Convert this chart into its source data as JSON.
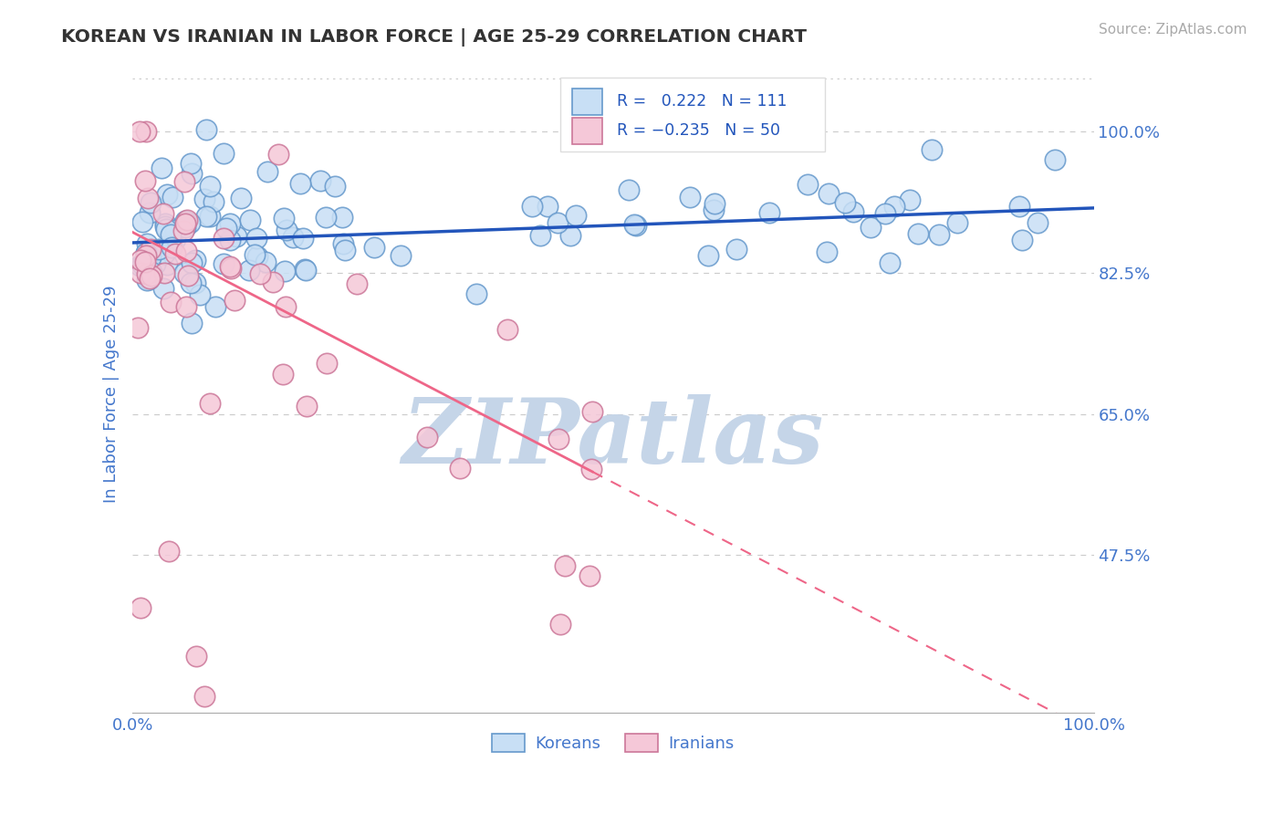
{
  "title": "KOREAN VS IRANIAN IN LABOR FORCE | AGE 25-29 CORRELATION CHART",
  "source_text": "Source: ZipAtlas.com",
  "ylabel": "In Labor Force | Age 25-29",
  "xlim": [
    0.0,
    1.0
  ],
  "ylim": [
    0.28,
    1.07
  ],
  "yticks": [
    0.475,
    0.65,
    0.825,
    1.0
  ],
  "ytick_labels": [
    "47.5%",
    "65.0%",
    "82.5%",
    "100.0%"
  ],
  "xticks": [
    0.0,
    1.0
  ],
  "xtick_labels": [
    "0.0%",
    "100.0%"
  ],
  "korean_face_color": "#c8dff5",
  "korean_edge_color": "#6699cc",
  "iranian_face_color": "#f5c8d8",
  "iranian_edge_color": "#cc7799",
  "korean_R": 0.222,
  "korean_N": 111,
  "iranian_R": -0.235,
  "iranian_N": 50,
  "trend_blue": "#2255bb",
  "trend_pink": "#ee6688",
  "watermark_color": "#c5d5e8",
  "grid_color": "#cccccc",
  "title_color": "#333333",
  "tick_label_color": "#4477cc",
  "axis_label_color": "#4477cc",
  "legend_text_color": "#333333",
  "legend_N_color": "#2255bb",
  "background_color": "#ffffff",
  "source_color": "#aaaaaa"
}
